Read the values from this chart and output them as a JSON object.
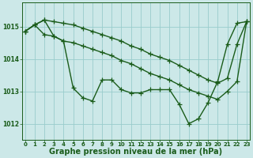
{
  "background_color": "#cce8e8",
  "grid_color": "#99cccc",
  "line_color": "#1a5c1a",
  "marker_color": "#1a5c1a",
  "marker_style": "+",
  "marker_size": 4,
  "line_width": 1.0,
  "xlabel": "Graphe pression niveau de la mer (hPa)",
  "xlabel_fontsize": 7,
  "ylim": [
    1011.5,
    1015.75
  ],
  "yticks": [
    1012,
    1013,
    1014,
    1015
  ],
  "xticks": [
    0,
    1,
    2,
    3,
    4,
    5,
    6,
    7,
    8,
    9,
    10,
    11,
    12,
    13,
    14,
    15,
    16,
    17,
    18,
    19,
    20,
    21,
    22,
    23
  ],
  "series": [
    [
      1014.85,
      1015.05,
      1015.2,
      1014.7,
      1014.55,
      1013.1,
      1012.8,
      1012.7,
      1013.35,
      1013.35,
      1013.05,
      1012.95,
      1012.95,
      1013.05,
      1013.05,
      1013.05,
      1012.6,
      1012.0,
      1012.15,
      1012.65,
      1013.3,
      1014.45,
      1015.1,
      1015.15
    ],
    [
      1014.85,
      1015.05,
      1014.75,
      1014.7,
      1014.55,
      1014.5,
      1014.4,
      1014.3,
      1014.2,
      1014.1,
      1013.95,
      1013.85,
      1013.7,
      1013.55,
      1013.45,
      1013.35,
      1013.2,
      1013.05,
      1012.95,
      1012.85,
      1012.75,
      1013.0,
      1013.3,
      1015.15
    ],
    [
      1014.85,
      1015.05,
      1015.2,
      1015.15,
      1015.1,
      1015.05,
      1014.95,
      1014.85,
      1014.75,
      1014.65,
      1014.55,
      1014.4,
      1014.3,
      1014.15,
      1014.05,
      1013.95,
      1013.8,
      1013.65,
      1013.5,
      1013.35,
      1013.25,
      1013.4,
      1014.45,
      1015.15
    ]
  ]
}
